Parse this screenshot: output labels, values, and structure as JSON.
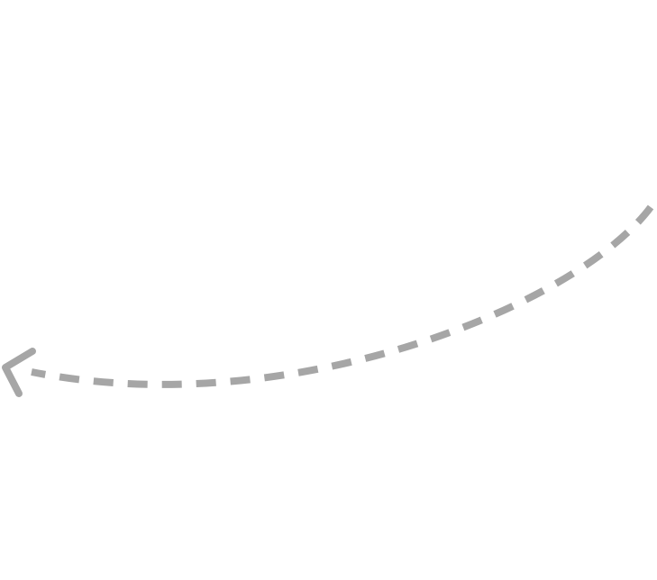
{
  "diagram": {
    "elements": [
      {
        "type": "curved-dashed-arrow",
        "direction": "right-to-left",
        "head": "open-chevron"
      }
    ],
    "colors": {
      "background": "#ffffff",
      "arrow": "#a6a6a6"
    }
  }
}
